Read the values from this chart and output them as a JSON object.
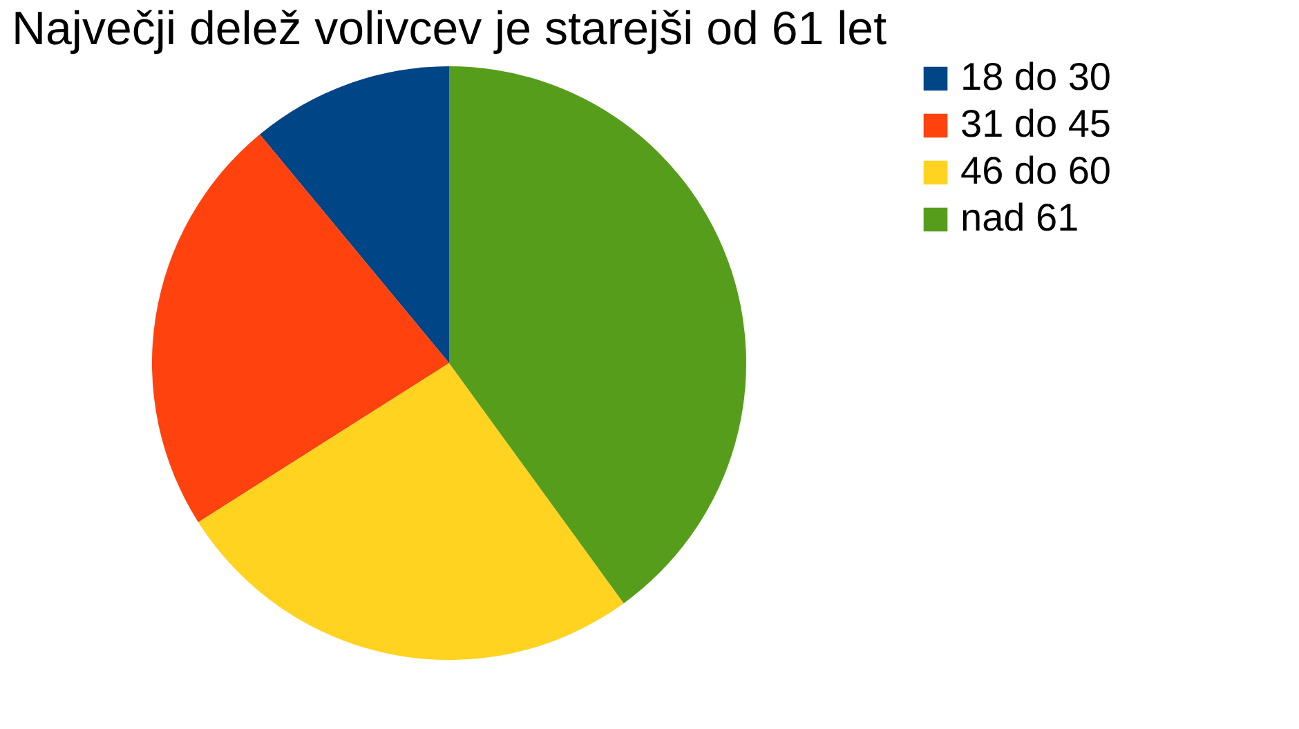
{
  "chart_data": {
    "type": "pie",
    "title": "Največji delež volivcev je starejši od 61 let",
    "categories": [
      "18 do 30",
      "31 do 45",
      "46 do 60",
      "nad 61"
    ],
    "values": [
      11,
      23,
      26,
      40
    ],
    "colors": [
      "#004586",
      "#ff420e",
      "#ffd320",
      "#579d1c"
    ],
    "legend": "right"
  }
}
